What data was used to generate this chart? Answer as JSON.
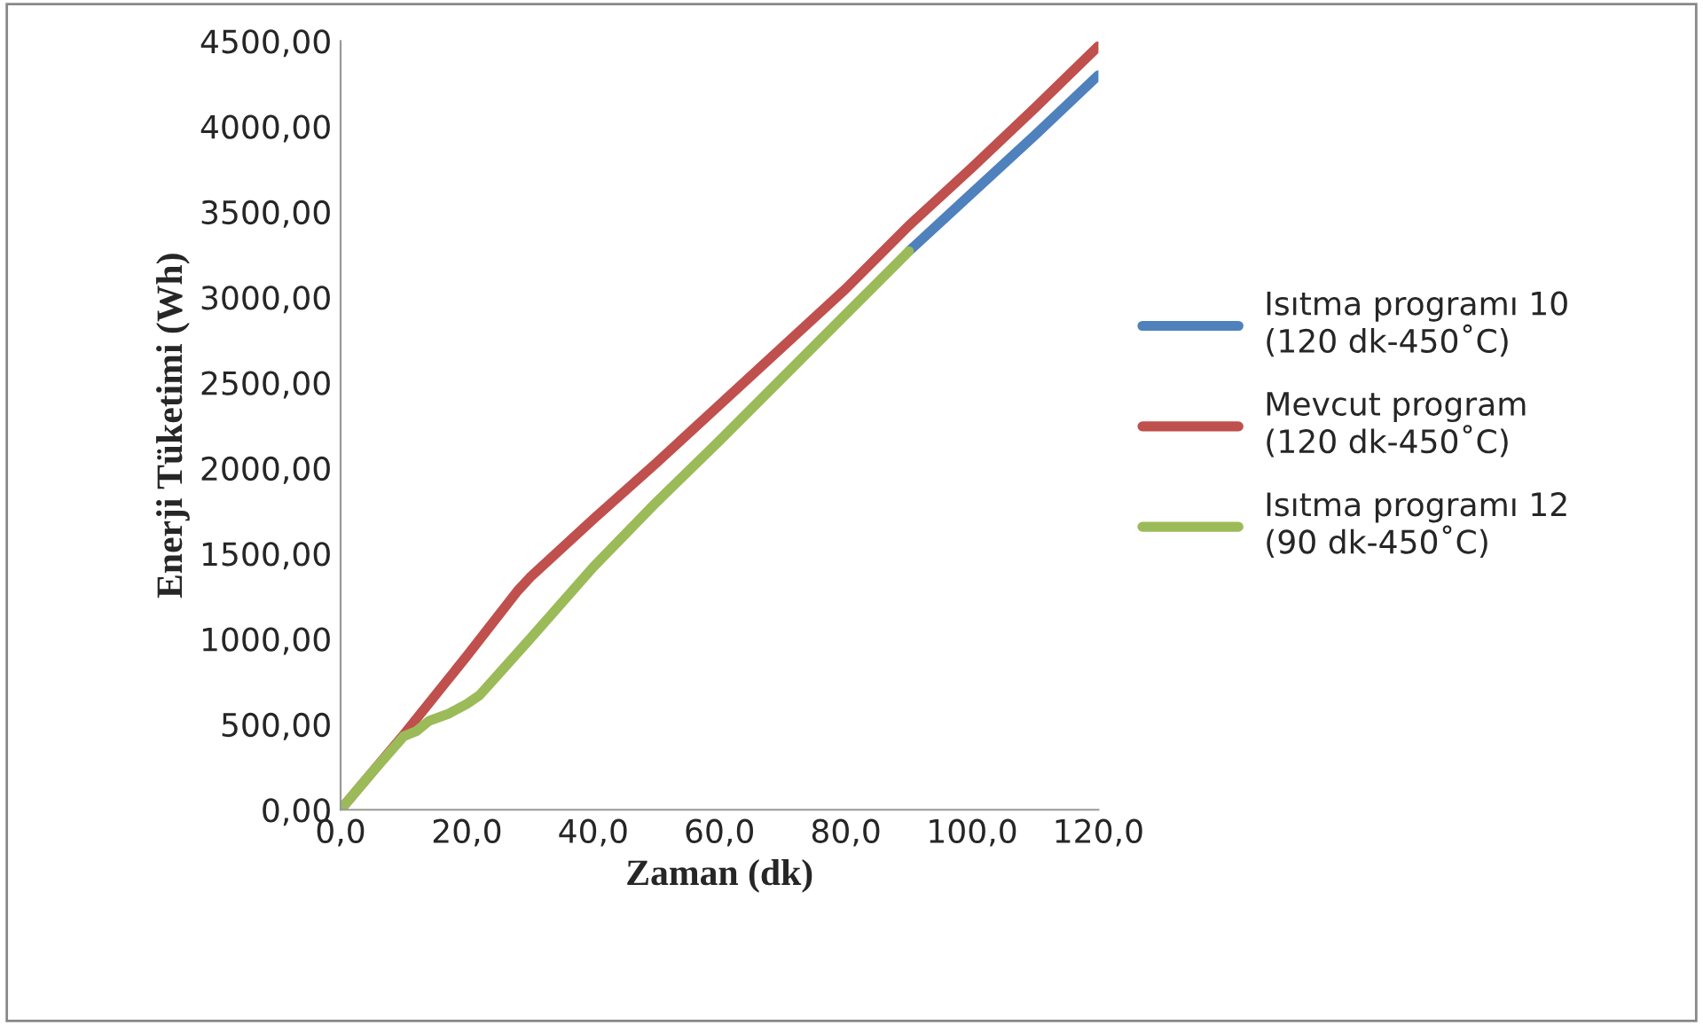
{
  "chart_data": {
    "type": "line",
    "xlabel": "Zaman (dk)",
    "ylabel": "Enerji Tüketimi (Wh)",
    "xlim": [
      0,
      120
    ],
    "ylim": [
      0,
      4500
    ],
    "xticks": [
      {
        "value": 0,
        "label": "0,0"
      },
      {
        "value": 20,
        "label": "20,0"
      },
      {
        "value": 40,
        "label": "40,0"
      },
      {
        "value": 60,
        "label": "60,0"
      },
      {
        "value": 80,
        "label": "80,0"
      },
      {
        "value": 100,
        "label": "100,0"
      },
      {
        "value": 120,
        "label": "120,0"
      }
    ],
    "yticks": [
      {
        "value": 0,
        "label": "0,00"
      },
      {
        "value": 500,
        "label": "500,00"
      },
      {
        "value": 1000,
        "label": "1000,00"
      },
      {
        "value": 1500,
        "label": "1500,00"
      },
      {
        "value": 2000,
        "label": "2000,00"
      },
      {
        "value": 2500,
        "label": "2500,00"
      },
      {
        "value": 3000,
        "label": "3000,00"
      },
      {
        "value": 3500,
        "label": "3500,00"
      },
      {
        "value": 4000,
        "label": "4000,00"
      },
      {
        "value": 4500,
        "label": "4500,00"
      }
    ],
    "grid": false,
    "legend": "right",
    "marker": "none",
    "line_style": "solid",
    "series": [
      {
        "name": "Isıtma programı 10\n(120 dk-450˚C)",
        "color": "#4f81bd",
        "x": [
          90,
          100,
          110,
          120
        ],
        "values": [
          3270,
          3610,
          3950,
          4300
        ]
      },
      {
        "name": "Mevcut program\n(120 dk-450˚C)",
        "color": "#c0504d",
        "x": [
          0,
          5,
          10,
          20,
          28,
          30,
          40,
          50,
          60,
          70,
          80,
          90,
          100,
          110,
          120
        ],
        "values": [
          0,
          220,
          440,
          900,
          1280,
          1360,
          1700,
          2030,
          2370,
          2710,
          3050,
          3420,
          3760,
          4110,
          4470
        ]
      },
      {
        "name": "Isıtma programı 12\n(90 dk-450˚C)",
        "color": "#9bbb59",
        "x": [
          0,
          5,
          10,
          12,
          14,
          17,
          20,
          22,
          30,
          40,
          50,
          60,
          70,
          80,
          90
        ],
        "values": [
          0,
          220,
          430,
          460,
          520,
          560,
          620,
          670,
          1000,
          1420,
          1800,
          2160,
          2530,
          2900,
          3270
        ]
      }
    ]
  }
}
